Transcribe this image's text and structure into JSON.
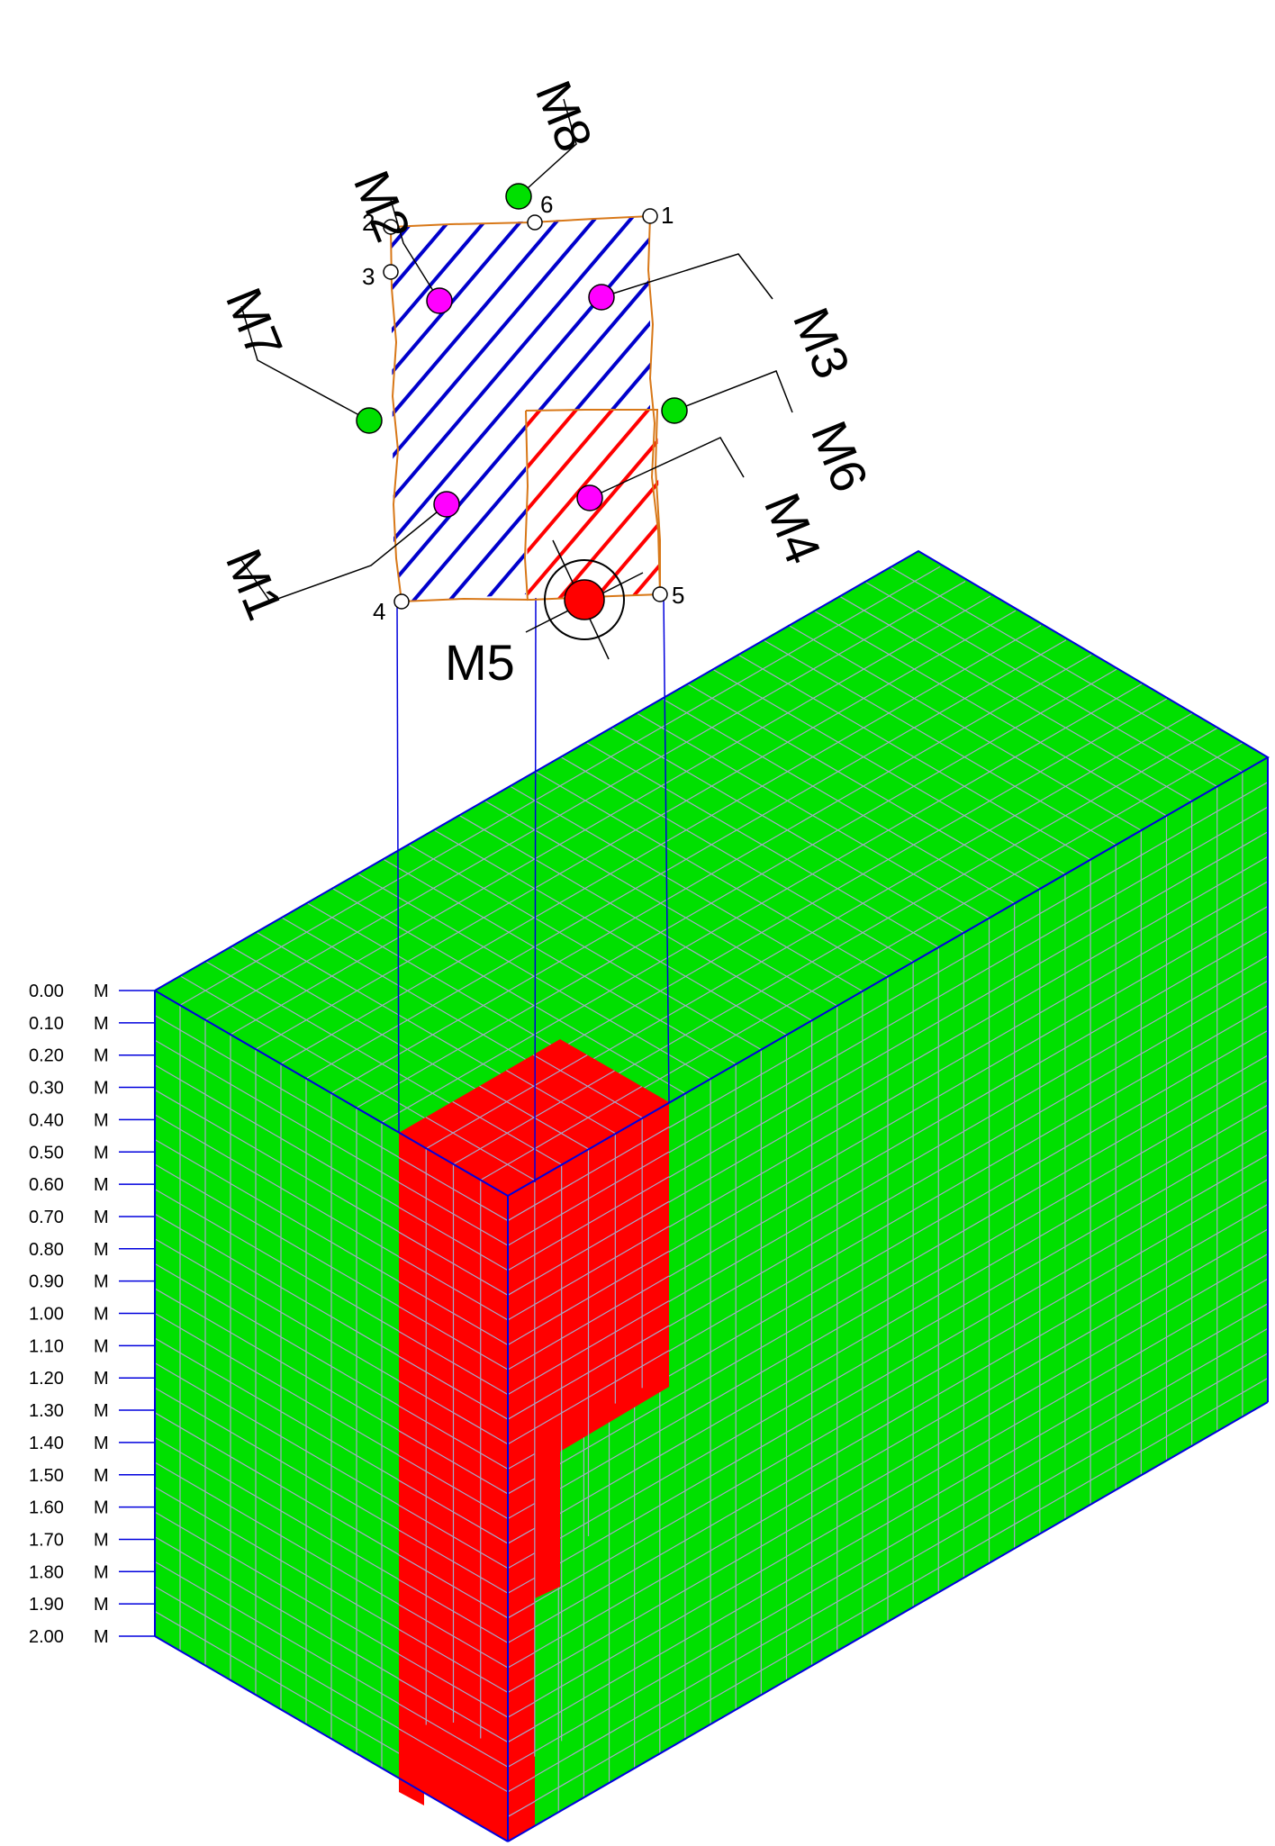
{
  "plan": {
    "markers": [
      {
        "id": "M1",
        "label": "M1",
        "kind": "measurement"
      },
      {
        "id": "M2",
        "label": "M2",
        "kind": "measurement"
      },
      {
        "id": "M3",
        "label": "M3",
        "kind": "measurement"
      },
      {
        "id": "M4",
        "label": "M4",
        "kind": "measurement"
      },
      {
        "id": "M5",
        "label": "M5",
        "kind": "source"
      },
      {
        "id": "M6",
        "label": "M6",
        "kind": "reference"
      },
      {
        "id": "M7",
        "label": "M7",
        "kind": "reference"
      },
      {
        "id": "M8",
        "label": "M8",
        "kind": "reference"
      }
    ],
    "corner_points": [
      "1",
      "2",
      "3",
      "4",
      "5",
      "6"
    ]
  },
  "depth_scale": {
    "unit": "M",
    "ticks": [
      "0.00",
      "0.10",
      "0.20",
      "0.30",
      "0.40",
      "0.50",
      "0.60",
      "0.70",
      "0.80",
      "0.90",
      "1.00",
      "1.10",
      "1.20",
      "1.30",
      "1.40",
      "1.50",
      "1.60",
      "1.70",
      "1.80",
      "1.90",
      "2.00"
    ]
  },
  "colors": {
    "sound_zone": "#00e000",
    "affected_zone": "#ff0000",
    "grid_line": "#a8a8c8",
    "edge_line": "#0000dd",
    "outline": "#d87818",
    "hatch_blue": "#0000cc",
    "hatch_red": "#ff0000",
    "measurement_point": "#ff00ff",
    "reference_point": "#00e000",
    "source_point": "#ff0000"
  }
}
